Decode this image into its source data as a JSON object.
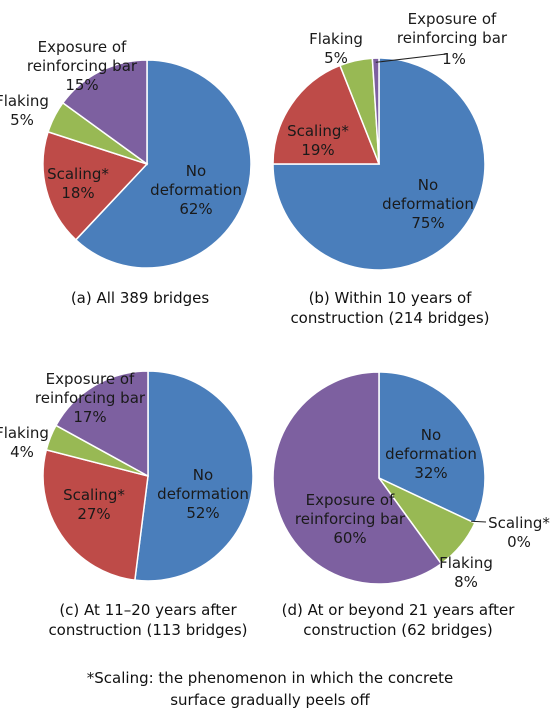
{
  "chart_data": [
    {
      "type": "pie",
      "caption": [
        "(a) All 389 bridges"
      ],
      "slices": [
        {
          "label": [
            "No",
            "deformation"
          ],
          "value": 62,
          "value_label": "62%",
          "color": "#4a7ebb"
        },
        {
          "label": [
            "Scaling*"
          ],
          "value": 18,
          "value_label": "18%",
          "color": "#be4b48"
        },
        {
          "label": [
            "Flaking"
          ],
          "value": 5,
          "value_label": "5%",
          "color": "#98b954"
        },
        {
          "label": [
            "Exposure of",
            "reinforcing bar"
          ],
          "value": 15,
          "value_label": "15%",
          "color": "#7d60a0"
        }
      ]
    },
    {
      "type": "pie",
      "caption": [
        "(b) Within 10 years of",
        "construction (214 bridges)"
      ],
      "slices": [
        {
          "label": [
            "No",
            "deformation"
          ],
          "value": 75,
          "value_label": "75%",
          "color": "#4a7ebb"
        },
        {
          "label": [
            "Scaling*"
          ],
          "value": 19,
          "value_label": "19%",
          "color": "#be4b48"
        },
        {
          "label": [
            "Flaking"
          ],
          "value": 5,
          "value_label": "5%",
          "color": "#98b954"
        },
        {
          "label": [
            "Exposure of",
            "reinforcing bar"
          ],
          "value": 1,
          "value_label": "1%",
          "color": "#7d60a0"
        }
      ]
    },
    {
      "type": "pie",
      "caption": [
        "(c) At 11–20 years after",
        "construction (113 bridges)"
      ],
      "slices": [
        {
          "label": [
            "No",
            "deformation"
          ],
          "value": 52,
          "value_label": "52%",
          "color": "#4a7ebb"
        },
        {
          "label": [
            "Scaling*"
          ],
          "value": 27,
          "value_label": "27%",
          "color": "#be4b48"
        },
        {
          "label": [
            "Flaking"
          ],
          "value": 4,
          "value_label": "4%",
          "color": "#98b954"
        },
        {
          "label": [
            "Exposure of",
            "reinforcing bar"
          ],
          "value": 17,
          "value_label": "17%",
          "color": "#7d60a0"
        }
      ]
    },
    {
      "type": "pie",
      "caption": [
        "(d) At or beyond 21 years after",
        "construction (62 bridges)"
      ],
      "slices": [
        {
          "label": [
            "No",
            "deformation"
          ],
          "value": 32,
          "value_label": "32%",
          "color": "#4a7ebb"
        },
        {
          "label": [
            "Scaling*"
          ],
          "value": 0,
          "value_label": "0%",
          "color": "#be4b48"
        },
        {
          "label": [
            "Flaking"
          ],
          "value": 8,
          "value_label": "8%",
          "color": "#98b954"
        },
        {
          "label": [
            "Exposure of",
            "reinforcing bar"
          ],
          "value": 60,
          "value_label": "60%",
          "color": "#7d60a0"
        }
      ]
    }
  ],
  "footnote": [
    "*Scaling: the phenomenon in which the concrete",
    "surface gradually peels off"
  ]
}
